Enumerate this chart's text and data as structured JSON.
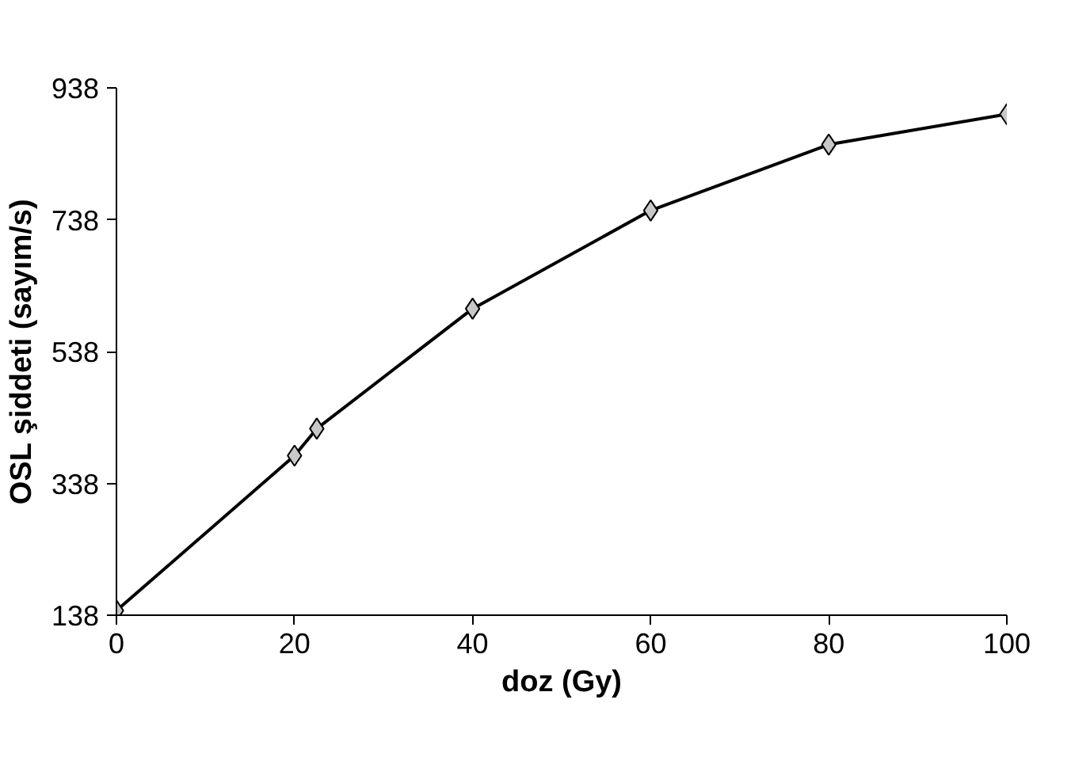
{
  "chart_data": {
    "type": "line",
    "xlabel": "doz (Gy)",
    "ylabel": "OSL şiddeti (sayım/s)",
    "x": [
      0,
      20,
      22.5,
      40,
      60,
      80,
      100
    ],
    "series": [
      {
        "color": "#000000",
        "values": [
          145,
          380,
          421,
          603,
          752,
          852,
          898
        ]
      }
    ],
    "marker": "diamond",
    "line_style": "solid",
    "xlim": [
      0,
      100
    ],
    "xticks": [
      0,
      20,
      40,
      60,
      80,
      100
    ],
    "ylim": [
      138,
      938
    ],
    "yticks": [
      138,
      338,
      538,
      738,
      938
    ],
    "grid": false
  }
}
